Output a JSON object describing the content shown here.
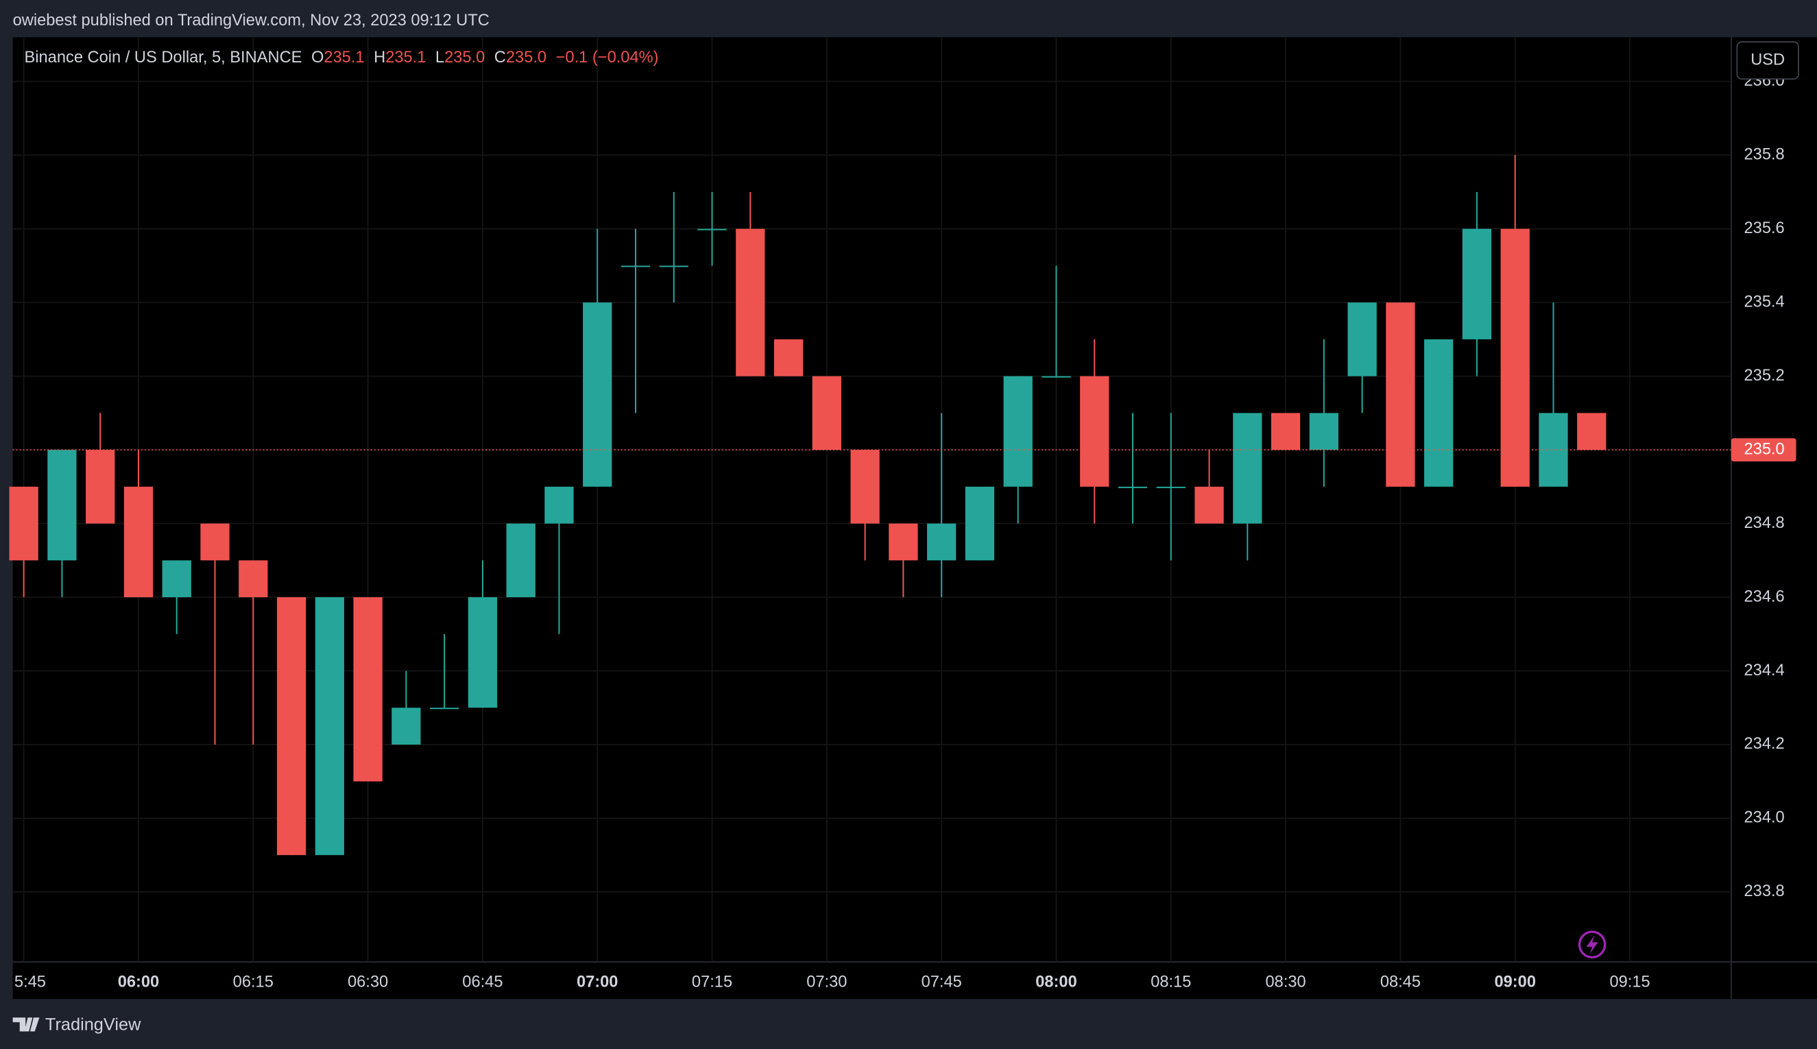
{
  "attribution": "owiebest published on TradingView.com, Nov 23, 2023 09:12 UTC",
  "brand": "TradingView",
  "chart_data": {
    "type": "candlestick",
    "title": "Binance Coin / US Dollar, 5, BINANCE",
    "quote": [
      {
        "key": "O",
        "value": 235.1,
        "label": "235.1"
      },
      {
        "key": "H",
        "value": 235.1,
        "label": "235.1"
      },
      {
        "key": "L",
        "value": 235.0,
        "label": "235.0"
      },
      {
        "key": "C",
        "value": 235.0,
        "label": "235.0"
      }
    ],
    "change": "−0.1 (−0.04%)",
    "currency": "USD",
    "up_color": "#26a69a",
    "down_color": "#ef5350",
    "x": [
      "05:45",
      "05:50",
      "05:55",
      "06:00",
      "06:05",
      "06:10",
      "06:15",
      "06:20",
      "06:25",
      "06:30",
      "06:35",
      "06:40",
      "06:45",
      "06:50",
      "06:55",
      "07:00",
      "07:05",
      "07:10",
      "07:15",
      "07:20",
      "07:25",
      "07:30",
      "07:35",
      "07:40",
      "07:45",
      "07:50",
      "07:55",
      "08:00",
      "08:05",
      "08:10",
      "08:15",
      "08:20",
      "08:25",
      "08:30",
      "08:35",
      "08:40",
      "08:45",
      "08:50",
      "08:55",
      "09:00",
      "09:05",
      "09:10"
    ],
    "open": [
      234.9,
      234.7,
      235.0,
      234.9,
      234.6,
      234.8,
      234.7,
      234.6,
      233.9,
      234.6,
      234.2,
      234.3,
      234.3,
      234.6,
      234.8,
      234.9,
      235.5,
      235.5,
      235.6,
      235.6,
      235.3,
      235.2,
      235.0,
      234.8,
      234.7,
      234.7,
      234.9,
      235.2,
      235.2,
      234.9,
      234.9,
      234.9,
      234.8,
      235.1,
      235.0,
      235.2,
      235.4,
      234.9,
      235.3,
      235.6,
      234.9,
      235.1
    ],
    "high": [
      234.9,
      235.0,
      235.1,
      235.0,
      234.7,
      234.8,
      234.7,
      234.6,
      234.6,
      234.6,
      234.4,
      234.5,
      234.7,
      234.8,
      234.9,
      235.6,
      235.6,
      235.7,
      235.7,
      235.7,
      235.3,
      235.2,
      235.0,
      234.8,
      235.1,
      234.9,
      235.2,
      235.5,
      235.3,
      235.1,
      235.1,
      235.0,
      235.1,
      235.1,
      235.3,
      235.4,
      235.4,
      235.3,
      235.7,
      235.8,
      235.4,
      235.1
    ],
    "low": [
      234.6,
      234.6,
      234.8,
      234.6,
      234.5,
      234.2,
      234.2,
      233.9,
      233.9,
      234.1,
      234.2,
      234.3,
      234.3,
      234.6,
      234.5,
      234.9,
      235.1,
      235.4,
      235.5,
      235.2,
      235.2,
      235.0,
      234.7,
      234.6,
      234.6,
      234.7,
      234.8,
      235.2,
      234.8,
      234.8,
      234.7,
      234.8,
      234.7,
      235.0,
      234.9,
      235.1,
      234.9,
      234.9,
      235.2,
      234.9,
      234.9,
      235.0
    ],
    "close": [
      234.7,
      235.0,
      234.8,
      234.6,
      234.7,
      234.7,
      234.6,
      233.9,
      234.6,
      234.1,
      234.3,
      234.3,
      234.6,
      234.8,
      234.9,
      235.4,
      235.5,
      235.5,
      235.6,
      235.2,
      235.2,
      235.0,
      234.8,
      234.7,
      234.8,
      234.9,
      235.2,
      235.2,
      234.9,
      234.9,
      234.9,
      234.8,
      235.1,
      235.0,
      235.1,
      235.4,
      234.9,
      235.3,
      235.6,
      234.9,
      235.1,
      235.0
    ],
    "ylim": [
      233.61,
      236.12
    ],
    "yticks": [
      233.8,
      {
        "value": 234.0,
        "label": "234.0"
      },
      234.2,
      234.4,
      234.6,
      234.8,
      {
        "value": 235.0,
        "label": "235.0"
      },
      235.2,
      235.4,
      235.6,
      235.8,
      {
        "value": 236.0,
        "label": "236.0"
      }
    ],
    "xticks": [
      "5:45",
      "06:00",
      "06:15",
      "06:30",
      "06:45",
      "07:00",
      "07:15",
      "07:30",
      "07:45",
      "08:00",
      "08:15",
      "08:30",
      "08:45",
      "09:00",
      "09:15"
    ],
    "grid": true,
    "last_price": {
      "value": 235.0,
      "label": "235.0"
    }
  }
}
